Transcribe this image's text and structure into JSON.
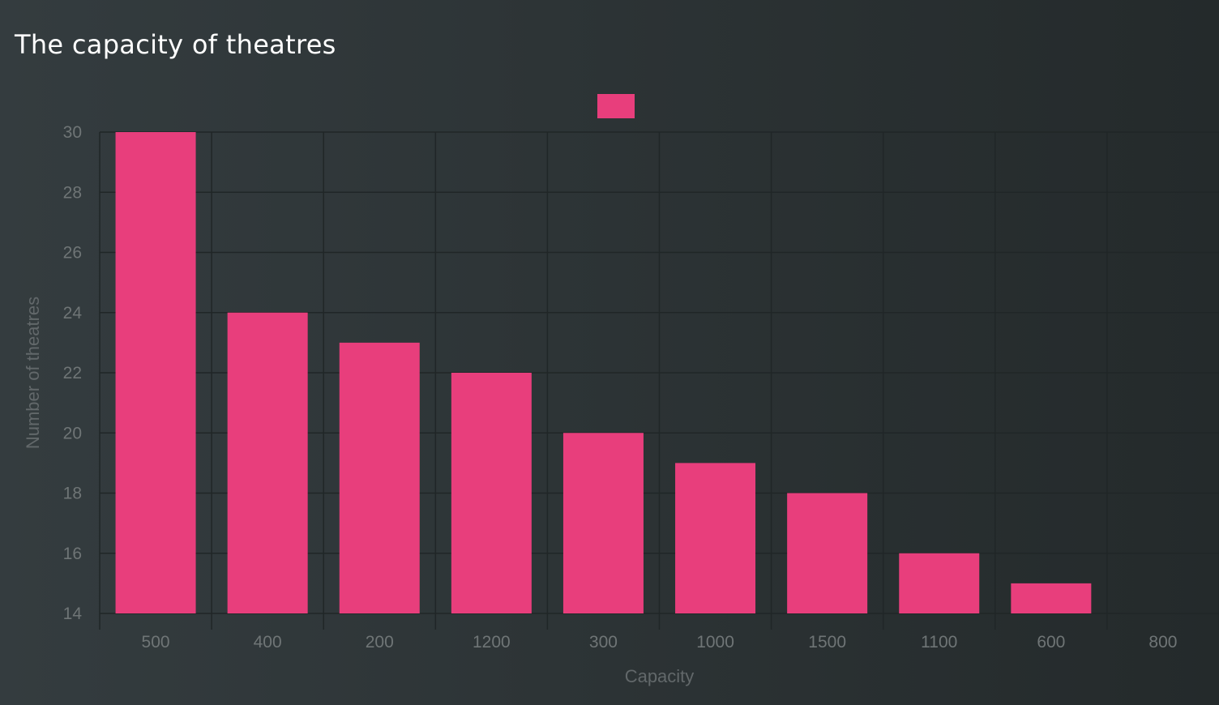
{
  "title": "The capacity of theatres",
  "colors": {
    "bar": "#e83e7c",
    "grid": "#202627",
    "tick_label": "#6f7576",
    "axis_title": "#62686a"
  },
  "chart_data": {
    "type": "bar",
    "title": "The capacity of theatres",
    "categories": [
      "500",
      "400",
      "200",
      "1200",
      "300",
      "1000",
      "1500",
      "1100",
      "600",
      "800"
    ],
    "series": [
      {
        "values": [
          30,
          24,
          23,
          22,
          20,
          19,
          18,
          16,
          15,
          14
        ]
      }
    ],
    "xlabel": "Capacity",
    "ylabel": "Number of theatres",
    "ylim": [
      14,
      30
    ],
    "yticks": [
      14,
      16,
      18,
      20,
      22,
      24,
      26,
      28,
      30
    ],
    "grid": true,
    "legend": "top-center"
  }
}
